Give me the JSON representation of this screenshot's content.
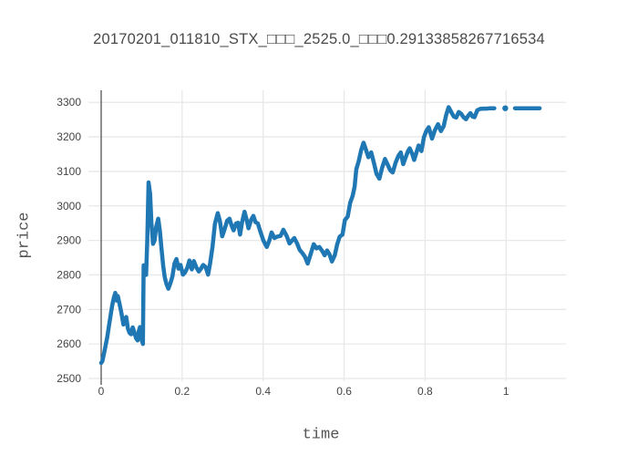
{
  "chart_data": {
    "type": "line",
    "title": "20170201_011810_STX_□□□_2525.0_□□□0.29133858267716534",
    "xlabel": "time",
    "ylabel": "price",
    "xlim": [
      -0.0315,
      1.148
    ],
    "ylim": [
      2492,
      3335
    ],
    "xticks": [
      0,
      0.2,
      0.4,
      0.6,
      0.8,
      1
    ],
    "xtick_labels": [
      "0",
      "0.2",
      "0.4",
      "0.6",
      "0.8",
      "1"
    ],
    "yticks": [
      2500,
      2600,
      2700,
      2800,
      2900,
      3000,
      3100,
      3200,
      3300
    ],
    "grid": true,
    "legend": "none",
    "colors": {
      "line": "#1f77b4",
      "grid": "#e8e8e8",
      "zeroline": "#444444",
      "text": "#444444"
    },
    "series_name": "price",
    "segments": [
      [
        [
          0.0,
          2545
        ],
        [
          0.003,
          2550
        ],
        [
          0.007,
          2572
        ],
        [
          0.011,
          2596
        ],
        [
          0.015,
          2620
        ],
        [
          0.019,
          2650
        ],
        [
          0.023,
          2680
        ],
        [
          0.027,
          2710
        ],
        [
          0.031,
          2733
        ],
        [
          0.035,
          2748
        ],
        [
          0.038,
          2726
        ],
        [
          0.041,
          2739
        ],
        [
          0.045,
          2718
        ],
        [
          0.05,
          2690
        ],
        [
          0.055,
          2656
        ],
        [
          0.058,
          2670
        ],
        [
          0.062,
          2678
        ],
        [
          0.066,
          2645
        ],
        [
          0.07,
          2632
        ],
        [
          0.074,
          2628
        ],
        [
          0.078,
          2648
        ],
        [
          0.082,
          2634
        ],
        [
          0.086,
          2617
        ],
        [
          0.09,
          2610
        ],
        [
          0.093,
          2637
        ],
        [
          0.096,
          2649
        ],
        [
          0.1,
          2613
        ],
        [
          0.103,
          2600
        ],
        [
          0.105,
          2828
        ],
        [
          0.108,
          2812
        ],
        [
          0.111,
          2800
        ],
        [
          0.114,
          2902
        ],
        [
          0.117,
          3068
        ],
        [
          0.121,
          3035
        ],
        [
          0.124,
          2952
        ],
        [
          0.128,
          2890
        ],
        [
          0.132,
          2900
        ],
        [
          0.136,
          2940
        ],
        [
          0.141,
          2963
        ],
        [
          0.145,
          2928
        ],
        [
          0.149,
          2876
        ],
        [
          0.153,
          2828
        ],
        [
          0.157,
          2794
        ],
        [
          0.161,
          2775
        ],
        [
          0.166,
          2760
        ],
        [
          0.171,
          2776
        ],
        [
          0.176,
          2796
        ],
        [
          0.181,
          2833
        ],
        [
          0.186,
          2846
        ],
        [
          0.191,
          2818
        ],
        [
          0.196,
          2829
        ],
        [
          0.202,
          2801
        ],
        [
          0.207,
          2807
        ],
        [
          0.213,
          2821
        ],
        [
          0.218,
          2842
        ],
        [
          0.224,
          2816
        ],
        [
          0.229,
          2840
        ],
        [
          0.235,
          2822
        ],
        [
          0.241,
          2810
        ],
        [
          0.247,
          2819
        ],
        [
          0.252,
          2829
        ],
        [
          0.258,
          2823
        ],
        [
          0.264,
          2801
        ],
        [
          0.269,
          2833
        ],
        [
          0.275,
          2882
        ],
        [
          0.281,
          2948
        ],
        [
          0.288,
          2979
        ],
        [
          0.293,
          2957
        ],
        [
          0.299,
          2912
        ],
        [
          0.305,
          2933
        ],
        [
          0.311,
          2957
        ],
        [
          0.317,
          2963
        ],
        [
          0.322,
          2944
        ],
        [
          0.327,
          2929
        ],
        [
          0.333,
          2949
        ],
        [
          0.338,
          2951
        ],
        [
          0.343,
          2917
        ],
        [
          0.348,
          2953
        ],
        [
          0.354,
          2983
        ],
        [
          0.359,
          2961
        ],
        [
          0.364,
          2935
        ],
        [
          0.37,
          2959
        ],
        [
          0.376,
          2971
        ],
        [
          0.381,
          2953
        ],
        [
          0.387,
          2949
        ],
        [
          0.394,
          2923
        ],
        [
          0.401,
          2899
        ],
        [
          0.409,
          2881
        ],
        [
          0.415,
          2899
        ],
        [
          0.421,
          2923
        ],
        [
          0.428,
          2907
        ],
        [
          0.435,
          2911
        ],
        [
          0.443,
          2913
        ],
        [
          0.45,
          2931
        ],
        [
          0.458,
          2913
        ],
        [
          0.465,
          2891
        ],
        [
          0.471,
          2899
        ],
        [
          0.477,
          2907
        ],
        [
          0.484,
          2891
        ],
        [
          0.49,
          2873
        ],
        [
          0.497,
          2863
        ],
        [
          0.503,
          2853
        ],
        [
          0.51,
          2833
        ],
        [
          0.517,
          2859
        ],
        [
          0.525,
          2889
        ],
        [
          0.532,
          2877
        ],
        [
          0.539,
          2881
        ],
        [
          0.546,
          2869
        ],
        [
          0.552,
          2857
        ],
        [
          0.558,
          2871
        ],
        [
          0.564,
          2859
        ],
        [
          0.57,
          2839
        ],
        [
          0.577,
          2857
        ],
        [
          0.583,
          2889
        ],
        [
          0.589,
          2911
        ],
        [
          0.596,
          2917
        ],
        [
          0.602,
          2959
        ],
        [
          0.609,
          2969
        ],
        [
          0.615,
          3009
        ],
        [
          0.621,
          3029
        ],
        [
          0.626,
          3056
        ],
        [
          0.63,
          3106
        ],
        [
          0.636,
          3129
        ],
        [
          0.642,
          3161
        ],
        [
          0.648,
          3183
        ],
        [
          0.654,
          3163
        ],
        [
          0.66,
          3141
        ],
        [
          0.667,
          3155
        ],
        [
          0.674,
          3123
        ],
        [
          0.68,
          3093
        ],
        [
          0.687,
          3079
        ],
        [
          0.694,
          3111
        ],
        [
          0.701,
          3136
        ],
        [
          0.707,
          3121
        ],
        [
          0.714,
          3103
        ],
        [
          0.72,
          3097
        ],
        [
          0.727,
          3125
        ],
        [
          0.734,
          3145
        ],
        [
          0.74,
          3155
        ],
        [
          0.746,
          3121
        ],
        [
          0.752,
          3141
        ],
        [
          0.758,
          3159
        ],
        [
          0.762,
          3167
        ],
        [
          0.768,
          3151
        ],
        [
          0.773,
          3133
        ],
        [
          0.779,
          3156
        ],
        [
          0.784,
          3175
        ],
        [
          0.791,
          3159
        ],
        [
          0.797,
          3199
        ],
        [
          0.803,
          3217
        ],
        [
          0.809,
          3228
        ],
        [
          0.817,
          3195
        ],
        [
          0.824,
          3219
        ],
        [
          0.832,
          3237
        ],
        [
          0.839,
          3217
        ],
        [
          0.846,
          3231
        ],
        [
          0.852,
          3263
        ],
        [
          0.858,
          3286
        ],
        [
          0.865,
          3271
        ],
        [
          0.871,
          3259
        ],
        [
          0.877,
          3256
        ],
        [
          0.883,
          3272
        ],
        [
          0.889,
          3267
        ],
        [
          0.895,
          3257
        ],
        [
          0.901,
          3251
        ],
        [
          0.907,
          3262
        ],
        [
          0.912,
          3269
        ],
        [
          0.917,
          3259
        ],
        [
          0.922,
          3257
        ],
        [
          0.929,
          3277
        ],
        [
          0.936,
          3281
        ],
        [
          0.944,
          3282
        ],
        [
          0.952,
          3282
        ],
        [
          0.96,
          3283
        ],
        [
          0.971,
          3283
        ]
      ],
      [
        [
          0.998,
          3283
        ]
      ],
      [
        [
          1.022,
          3283
        ],
        [
          1.083,
          3283
        ]
      ]
    ]
  }
}
